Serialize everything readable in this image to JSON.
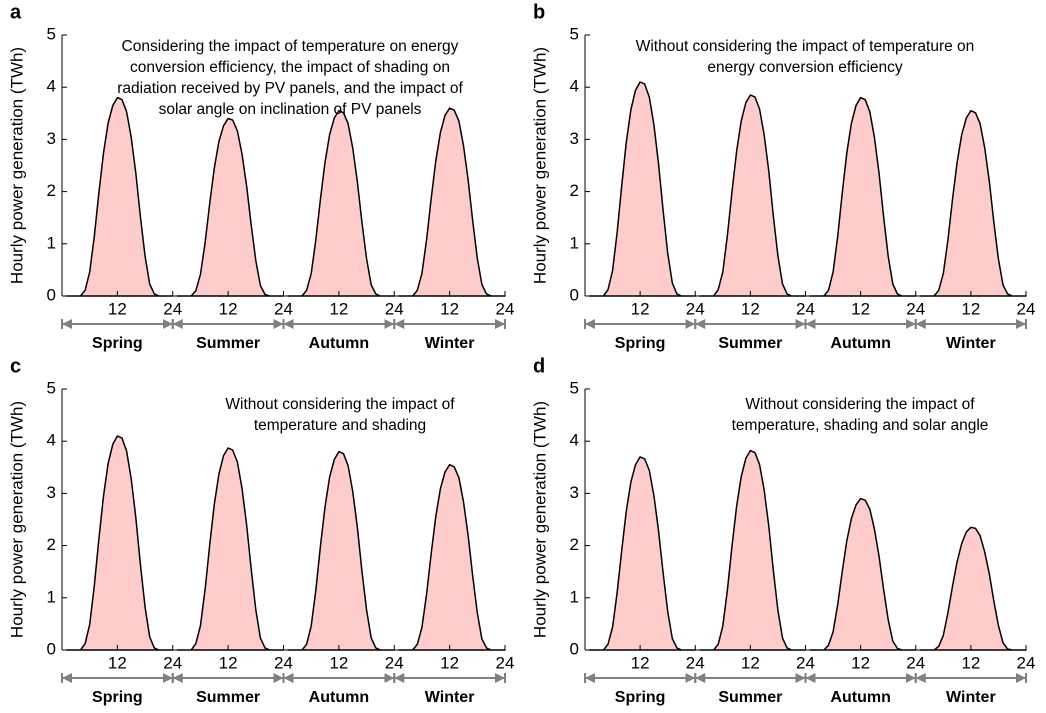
{
  "chart_data": [
    {
      "type": "area",
      "panel": "a",
      "annotation": [
        "Considering the impact of temperature on energy",
        "conversion efficiency, the impact of shading on",
        "radiation received by PV panels, and the impact of",
        "solar angle on inclination of PV panels"
      ],
      "ylabel": "Hourly power generation (TWh)",
      "x": [
        1,
        2,
        3,
        4,
        5,
        6,
        7,
        8,
        9,
        10,
        11,
        12,
        13,
        14,
        15,
        16,
        17,
        18,
        19,
        20,
        21,
        22,
        23,
        24
      ],
      "xlim": [
        0,
        24
      ],
      "xticks": [
        12,
        24
      ],
      "ylim": [
        0,
        5
      ],
      "yticks": [
        0,
        1,
        2,
        3,
        4,
        5
      ],
      "fill_color": "#ffcccc",
      "line_color": "#000000",
      "series": [
        {
          "name": "Spring",
          "values": [
            0,
            0,
            0,
            0,
            0.11,
            0.46,
            1.14,
            1.98,
            2.74,
            3.31,
            3.65,
            3.8,
            3.76,
            3.53,
            3.04,
            2.36,
            1.52,
            0.76,
            0.23,
            0.04,
            0,
            0,
            0,
            0
          ]
        },
        {
          "name": "Summer",
          "values": [
            0,
            0,
            0,
            0,
            0.1,
            0.41,
            1.02,
            1.77,
            2.45,
            2.96,
            3.26,
            3.4,
            3.37,
            3.16,
            2.72,
            2.11,
            1.36,
            0.68,
            0.2,
            0.03,
            0,
            0,
            0,
            0
          ]
        },
        {
          "name": "Autumn",
          "values": [
            0,
            0,
            0,
            0,
            0.11,
            0.43,
            1.07,
            1.85,
            2.56,
            3.09,
            3.41,
            3.55,
            3.51,
            3.3,
            2.84,
            2.2,
            1.42,
            0.71,
            0.21,
            0.04,
            0,
            0,
            0,
            0
          ]
        },
        {
          "name": "Winter",
          "values": [
            0,
            0,
            0,
            0,
            0.11,
            0.43,
            1.08,
            1.87,
            2.59,
            3.13,
            3.46,
            3.6,
            3.56,
            3.35,
            2.88,
            2.23,
            1.44,
            0.72,
            0.22,
            0.04,
            0,
            0,
            0,
            0
          ]
        }
      ]
    },
    {
      "type": "area",
      "panel": "b",
      "annotation": [
        "Without considering the impact of temperature on",
        "energy conversion efficiency"
      ],
      "ylabel": "Hourly power generation (TWh)",
      "x": [
        1,
        2,
        3,
        4,
        5,
        6,
        7,
        8,
        9,
        10,
        11,
        12,
        13,
        14,
        15,
        16,
        17,
        18,
        19,
        20,
        21,
        22,
        23,
        24
      ],
      "xlim": [
        0,
        24
      ],
      "xticks": [
        12,
        24
      ],
      "ylim": [
        0,
        5
      ],
      "yticks": [
        0,
        1,
        2,
        3,
        4,
        5
      ],
      "fill_color": "#ffcccc",
      "line_color": "#000000",
      "series": [
        {
          "name": "Spring",
          "values": [
            0,
            0,
            0,
            0,
            0.12,
            0.49,
            1.23,
            2.13,
            2.95,
            3.57,
            3.94,
            4.1,
            4.06,
            3.81,
            3.28,
            2.54,
            1.64,
            0.82,
            0.25,
            0.04,
            0,
            0,
            0,
            0
          ]
        },
        {
          "name": "Summer",
          "values": [
            0,
            0,
            0,
            0,
            0.12,
            0.46,
            1.16,
            2.0,
            2.77,
            3.35,
            3.7,
            3.85,
            3.81,
            3.58,
            3.08,
            2.39,
            1.54,
            0.77,
            0.23,
            0.04,
            0,
            0,
            0,
            0
          ]
        },
        {
          "name": "Autumn",
          "values": [
            0,
            0,
            0,
            0,
            0.11,
            0.46,
            1.14,
            1.98,
            2.74,
            3.31,
            3.65,
            3.8,
            3.76,
            3.53,
            3.04,
            2.36,
            1.52,
            0.76,
            0.23,
            0.04,
            0,
            0,
            0,
            0
          ]
        },
        {
          "name": "Winter",
          "values": [
            0,
            0,
            0,
            0,
            0.11,
            0.43,
            1.07,
            1.85,
            2.56,
            3.09,
            3.41,
            3.55,
            3.51,
            3.3,
            2.84,
            2.2,
            1.42,
            0.71,
            0.21,
            0.04,
            0,
            0,
            0,
            0
          ]
        }
      ]
    },
    {
      "type": "area",
      "panel": "c",
      "annotation": [
        "Without considering the impact of",
        "temperature and shading"
      ],
      "ylabel": "Hourly power generation (TWh)",
      "x": [
        1,
        2,
        3,
        4,
        5,
        6,
        7,
        8,
        9,
        10,
        11,
        12,
        13,
        14,
        15,
        16,
        17,
        18,
        19,
        20,
        21,
        22,
        23,
        24
      ],
      "xlim": [
        0,
        24
      ],
      "xticks": [
        12,
        24
      ],
      "ylim": [
        0,
        5
      ],
      "yticks": [
        0,
        1,
        2,
        3,
        4,
        5
      ],
      "fill_color": "#ffcccc",
      "line_color": "#000000",
      "series": [
        {
          "name": "Spring",
          "values": [
            0,
            0,
            0,
            0,
            0.12,
            0.49,
            1.23,
            2.13,
            2.95,
            3.57,
            3.94,
            4.1,
            4.06,
            3.81,
            3.28,
            2.54,
            1.64,
            0.82,
            0.25,
            0.04,
            0,
            0,
            0,
            0
          ]
        },
        {
          "name": "Summer",
          "values": [
            0,
            0,
            0,
            0,
            0.12,
            0.46,
            1.16,
            2.01,
            2.79,
            3.37,
            3.72,
            3.87,
            3.83,
            3.6,
            3.1,
            2.4,
            1.55,
            0.77,
            0.23,
            0.04,
            0,
            0,
            0,
            0
          ]
        },
        {
          "name": "Autumn",
          "values": [
            0,
            0,
            0,
            0,
            0.11,
            0.46,
            1.14,
            1.98,
            2.74,
            3.31,
            3.65,
            3.8,
            3.76,
            3.53,
            3.04,
            2.36,
            1.52,
            0.76,
            0.23,
            0.04,
            0,
            0,
            0,
            0
          ]
        },
        {
          "name": "Winter",
          "values": [
            0,
            0,
            0,
            0,
            0.11,
            0.43,
            1.07,
            1.85,
            2.56,
            3.09,
            3.41,
            3.55,
            3.51,
            3.3,
            2.84,
            2.2,
            1.42,
            0.71,
            0.21,
            0.04,
            0,
            0,
            0,
            0
          ]
        }
      ]
    },
    {
      "type": "area",
      "panel": "d",
      "annotation": [
        "Without considering the impact of",
        "temperature, shading and solar angle"
      ],
      "ylabel": "Hourly power generation (TWh)",
      "x": [
        1,
        2,
        3,
        4,
        5,
        6,
        7,
        8,
        9,
        10,
        11,
        12,
        13,
        14,
        15,
        16,
        17,
        18,
        19,
        20,
        21,
        22,
        23,
        24
      ],
      "xlim": [
        0,
        24
      ],
      "xticks": [
        12,
        24
      ],
      "ylim": [
        0,
        5
      ],
      "yticks": [
        0,
        1,
        2,
        3,
        4,
        5
      ],
      "fill_color": "#ffcccc",
      "line_color": "#000000",
      "series": [
        {
          "name": "Spring",
          "values": [
            0,
            0,
            0,
            0,
            0.11,
            0.44,
            1.11,
            1.92,
            2.66,
            3.22,
            3.55,
            3.7,
            3.66,
            3.44,
            2.96,
            2.29,
            1.48,
            0.74,
            0.22,
            0.04,
            0,
            0,
            0,
            0
          ]
        },
        {
          "name": "Summer",
          "values": [
            0,
            0,
            0,
            0,
            0.11,
            0.46,
            1.15,
            1.99,
            2.75,
            3.32,
            3.67,
            3.82,
            3.78,
            3.55,
            3.06,
            2.37,
            1.53,
            0.76,
            0.23,
            0.04,
            0,
            0,
            0,
            0
          ]
        },
        {
          "name": "Autumn",
          "values": [
            0,
            0,
            0,
            0,
            0.09,
            0.35,
            0.87,
            1.51,
            2.09,
            2.52,
            2.78,
            2.9,
            2.87,
            2.7,
            2.32,
            1.8,
            1.16,
            0.58,
            0.17,
            0.03,
            0,
            0,
            0,
            0
          ]
        },
        {
          "name": "Winter",
          "values": [
            0,
            0,
            0,
            0,
            0.07,
            0.28,
            0.71,
            1.22,
            1.69,
            2.04,
            2.26,
            2.35,
            2.33,
            2.19,
            1.88,
            1.46,
            0.94,
            0.47,
            0.14,
            0.02,
            0,
            0,
            0,
            0
          ]
        }
      ]
    }
  ]
}
